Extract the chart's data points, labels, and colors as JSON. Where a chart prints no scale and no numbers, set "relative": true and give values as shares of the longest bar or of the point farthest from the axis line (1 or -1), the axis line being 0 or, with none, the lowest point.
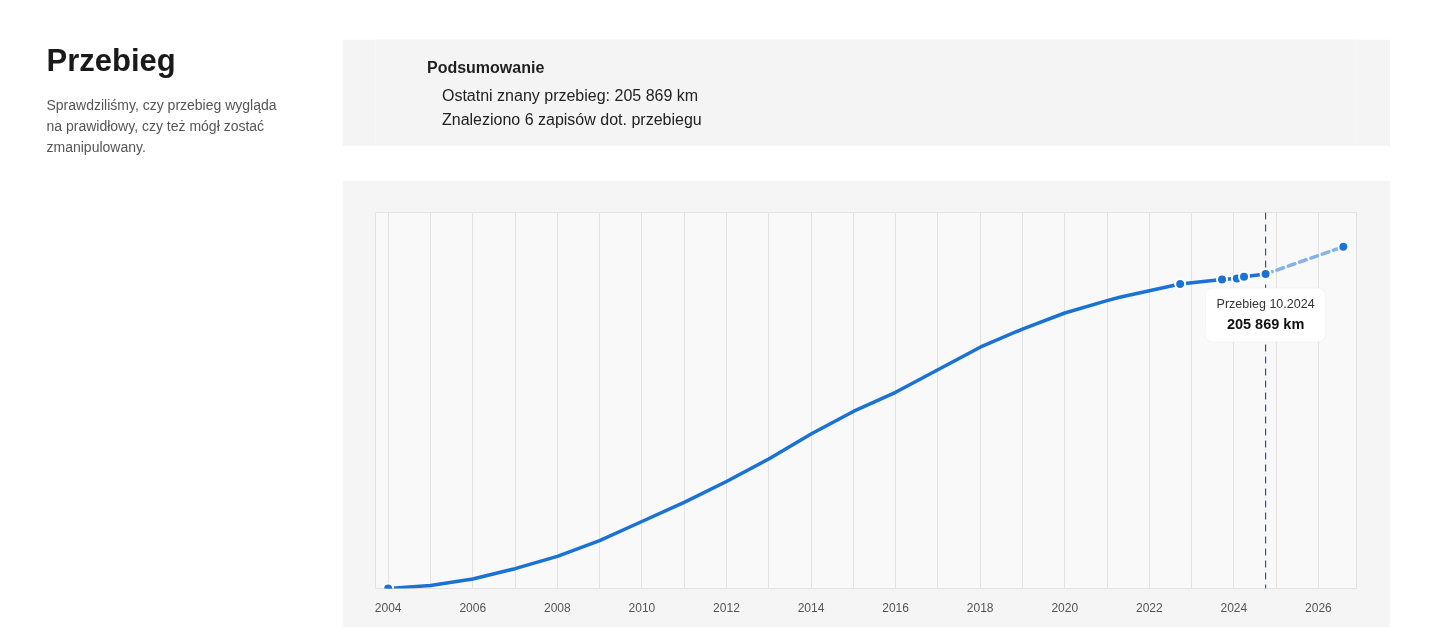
{
  "chart_data": {
    "type": "line",
    "title": "Przebieg",
    "subtitle": "Sprawdziliśmy, czy przebieg wygląda na prawidłowy, czy też mógł zostać zmanipulowany.",
    "annotations": [
      "Podsumowanie",
      "Ostatni znany przebieg: 205 869 km",
      "Znaleziono 6 zapisów dot. przebiegu",
      {
        "text": "Przebieg 10.2024\n205 869 km",
        "x": 2024.75,
        "y": 0.92
      }
    ],
    "relative": true,
    "xlim": [
      2003.7,
      2026.9
    ],
    "xticks": [
      2004,
      {
        "value": 2005,
        "label": null
      },
      2006,
      {
        "value": 2007,
        "label": null
      },
      2008,
      {
        "value": 2009,
        "label": null
      },
      2010,
      {
        "value": 2011,
        "label": null
      },
      2012,
      {
        "value": 2013,
        "label": null
      },
      2014,
      {
        "value": 2015,
        "label": null
      },
      2016,
      {
        "value": 2017,
        "label": null
      },
      2018,
      {
        "value": 2019,
        "label": null
      },
      2020,
      {
        "value": 2021,
        "label": null
      },
      2022,
      {
        "value": 2023,
        "label": null
      },
      2024,
      {
        "value": 2025,
        "label": null
      },
      2026
    ],
    "grid": "x",
    "ref_lines": [
      {
        "axis": "x",
        "value": 2024.75,
        "color": "#2a5d8f",
        "line_style": "dashed"
      }
    ],
    "series": [
      {
        "color": "#1a73d4",
        "x": [
          2004,
          2005,
          2006,
          2007,
          2008,
          2009,
          2010,
          2011,
          2012,
          2013,
          2014,
          2015,
          2016,
          2017,
          2018,
          2019,
          2020,
          2021,
          2021.3,
          2022.73,
          2023.72,
          2024.07,
          2024.24,
          2024.75
        ],
        "values": [
          0,
          0.009,
          0.028,
          0.058,
          0.094,
          0.14,
          0.196,
          0.252,
          0.313,
          0.379,
          0.452,
          0.518,
          0.574,
          0.64,
          0.706,
          0.759,
          0.806,
          0.842,
          0.852,
          0.891,
          0.904,
          0.907,
          0.912,
          0.92
        ]
      },
      {
        "color": "#85b4e4",
        "line_style": "dashed",
        "x": [
          2024.75,
          2026.59
        ],
        "values": [
          0.92,
          1
        ]
      },
      {
        "type": "scatter",
        "color": "#1a73d4",
        "marker": "circle",
        "x": [
          2004,
          2022.73,
          2023.72,
          2024.07,
          2024.24,
          2024.75,
          2026.59
        ],
        "values": [
          0,
          0.891,
          0.904,
          0.907,
          0.912,
          0.92,
          1
        ]
      }
    ]
  }
}
